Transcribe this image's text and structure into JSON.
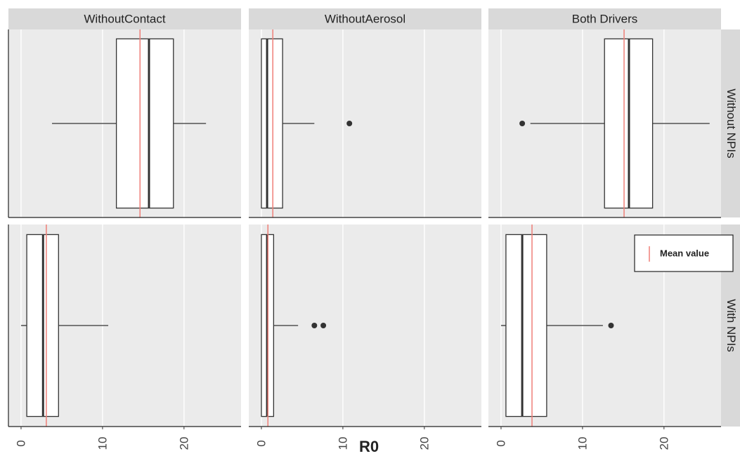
{
  "chart_data": {
    "type": "boxplot",
    "xlabel": "R0",
    "xlim": [
      -1.55,
      27
    ],
    "xticks": [
      0,
      10,
      20
    ],
    "columns": [
      "WithoutContact",
      "WithoutAerosol",
      "Both Drivers"
    ],
    "rows": [
      "Without NPIs",
      "With NPIs"
    ],
    "mean_color": "#ef7f78",
    "legend": {
      "label": "Mean value",
      "position": "right"
    },
    "panels": [
      [
        {
          "min": 3.8,
          "q1": 11.7,
          "median": 15.7,
          "q3": 18.7,
          "max": 22.7,
          "mean": 14.6,
          "outliers": []
        },
        {
          "min": 0,
          "q1": 0,
          "median": 0.7,
          "q3": 2.6,
          "max": 6.5,
          "mean": 1.4,
          "outliers": [
            10.8
          ]
        },
        {
          "min": 3.6,
          "q1": 12.7,
          "median": 15.7,
          "q3": 18.6,
          "max": 25.6,
          "mean": 15.1,
          "outliers": [
            2.6
          ]
        }
      ],
      [
        {
          "min": 0,
          "q1": 0.7,
          "median": 2.7,
          "q3": 4.6,
          "max": 10.7,
          "mean": 3.1,
          "outliers": []
        },
        {
          "min": 0,
          "q1": 0,
          "median": 0.7,
          "q3": 1.5,
          "max": 4.5,
          "mean": 0.8,
          "outliers": [
            6.5,
            7.6
          ]
        },
        {
          "min": 0,
          "q1": 0.6,
          "median": 2.6,
          "q3": 5.6,
          "max": 12.5,
          "mean": 3.8,
          "outliers": [
            13.5
          ]
        }
      ]
    ]
  }
}
